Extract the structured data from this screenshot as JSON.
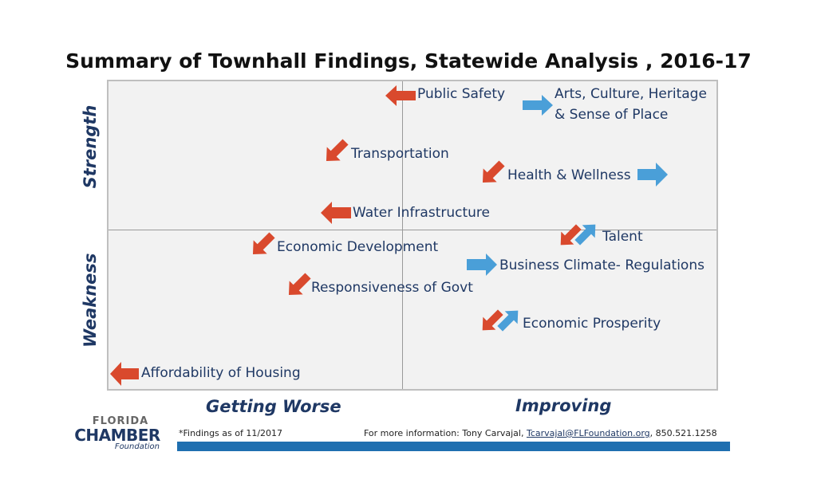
{
  "title": "Summary of Townhall Findings, Statewide Analysis , 2016-17",
  "axes": {
    "y_top": "Strength",
    "y_bottom": "Weakness",
    "x_left": "Getting Worse",
    "x_right": "Improving"
  },
  "items": {
    "public_safety": "Public Safety",
    "arts_line1": "Arts, Culture, Heritage",
    "arts_line2": "& Sense of Place",
    "transportation": "Transportation",
    "health": "Health & Wellness",
    "water": "Water Infrastructure",
    "talent": "Talent",
    "econ_dev": "Economic Development",
    "business": "Business Climate- Regulations",
    "responsiveness": "Responsiveness of Govt",
    "prosperity": "Economic Prosperity",
    "housing": "Affordability of Housing"
  },
  "colors": {
    "worse": "#d9492d",
    "improving": "#4a9fd8",
    "text": "#1f3864",
    "bar": "#1f6fb0"
  },
  "logo": {
    "line1": "FLORIDA",
    "line2": "CHAMBER",
    "line3": "Foundation"
  },
  "footer": {
    "footnote": "*Findings as of 11/2017",
    "contact_prefix": "For more information: Tony Carvajal, ",
    "contact_email": "Tcarvajal@FLFoundation.org",
    "contact_suffix": ", 850.521.1258"
  }
}
